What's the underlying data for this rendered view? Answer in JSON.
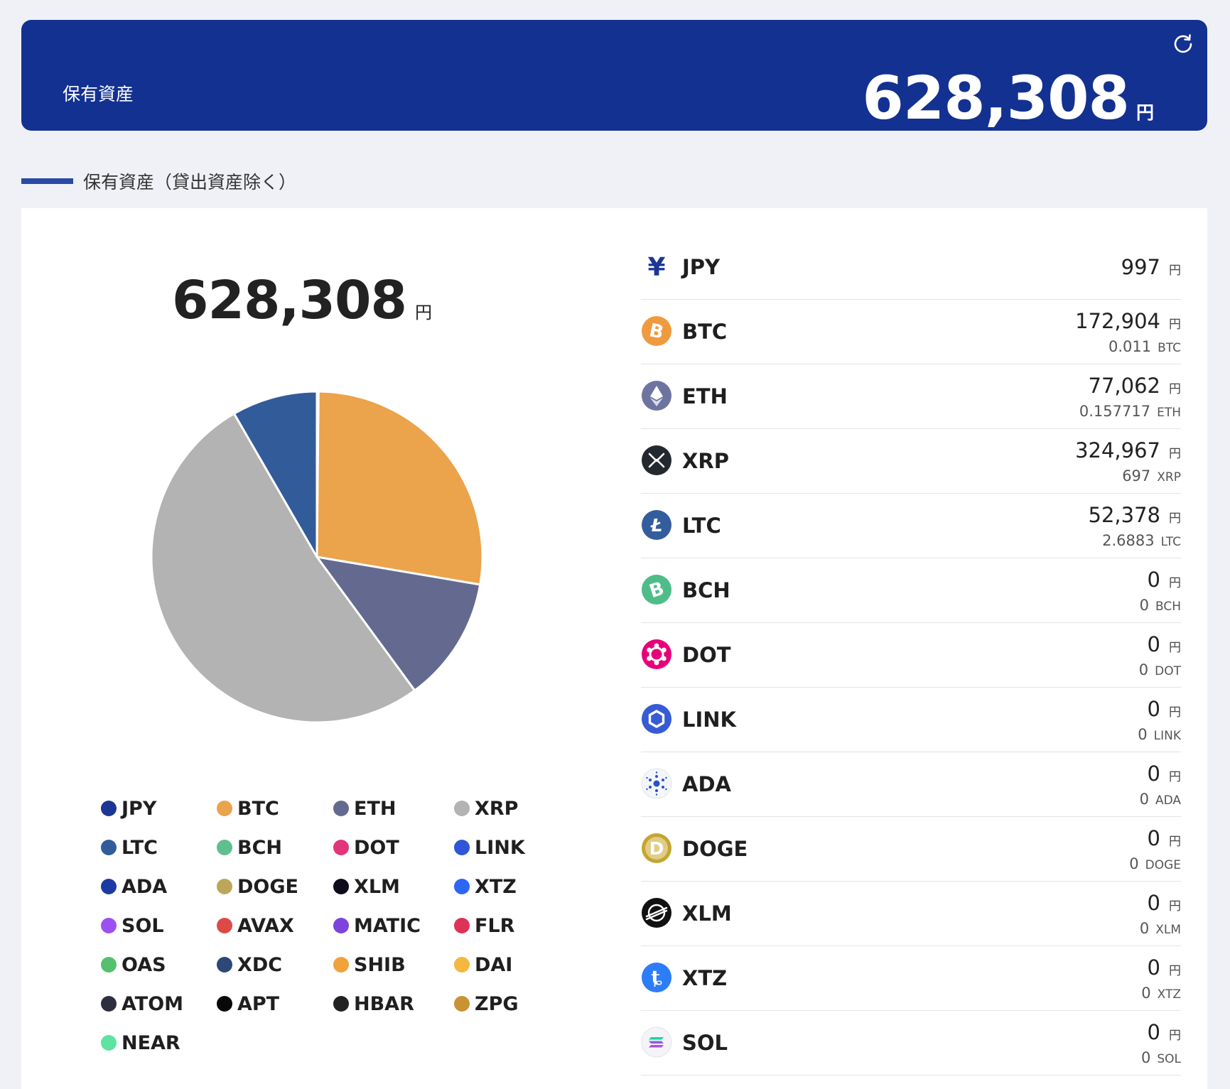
{
  "header": {
    "label": "保有資産",
    "total": "628,308",
    "unit": "円",
    "refresh_icon": "refresh-icon"
  },
  "section": {
    "title": "保有資産（貸出資産除く）"
  },
  "summary": {
    "total": "628,308",
    "unit": "円"
  },
  "chart_data": {
    "type": "pie",
    "title": "",
    "categories": [
      "JPY",
      "BTC",
      "ETH",
      "XRP",
      "LTC"
    ],
    "values": [
      997,
      172904,
      77062,
      324967,
      52378
    ],
    "colors": [
      "#1d3594",
      "#eba34c",
      "#646a8f",
      "#b3b3b3",
      "#325b9a"
    ],
    "start_angle_deg": 0,
    "direction": "clockwise",
    "legend_position": "bottom"
  },
  "legend": [
    {
      "label": "JPY",
      "color": "#1d3594"
    },
    {
      "label": "BTC",
      "color": "#eba34c"
    },
    {
      "label": "ETH",
      "color": "#646a8f"
    },
    {
      "label": "XRP",
      "color": "#b3b3b3"
    },
    {
      "label": "LTC",
      "color": "#325b9a"
    },
    {
      "label": "BCH",
      "color": "#5fbf8e"
    },
    {
      "label": "DOT",
      "color": "#e3357c"
    },
    {
      "label": "LINK",
      "color": "#2f56d6"
    },
    {
      "label": "ADA",
      "color": "#1d3aa3"
    },
    {
      "label": "DOGE",
      "color": "#bca65a"
    },
    {
      "label": "XLM",
      "color": "#0d0b1c"
    },
    {
      "label": "XTZ",
      "color": "#2c66f5"
    },
    {
      "label": "SOL",
      "color": "#9d50f0"
    },
    {
      "label": "AVAX",
      "color": "#dc4a48"
    },
    {
      "label": "MATIC",
      "color": "#7d43de"
    },
    {
      "label": "FLR",
      "color": "#dd3358"
    },
    {
      "label": "OAS",
      "color": "#55c06d"
    },
    {
      "label": "XDC",
      "color": "#2b4876"
    },
    {
      "label": "SHIB",
      "color": "#f0a23b"
    },
    {
      "label": "DAI",
      "color": "#f4b73f"
    },
    {
      "label": "ATOM",
      "color": "#2d2f3e"
    },
    {
      "label": "APT",
      "color": "#080808"
    },
    {
      "label": "HBAR",
      "color": "#222222"
    },
    {
      "label": "ZPG",
      "color": "#c99232"
    },
    {
      "label": "NEAR",
      "color": "#5de3a2"
    }
  ],
  "assets": [
    {
      "symbol": "JPY",
      "yen": "997",
      "yen_unit": "円",
      "amount": "",
      "amount_unit": "",
      "icon": "yen-icon",
      "color": "#1d3594"
    },
    {
      "symbol": "BTC",
      "yen": "172,904",
      "yen_unit": "円",
      "amount": "0.011",
      "amount_unit": "BTC",
      "icon": "bitcoin-icon",
      "color": "#f09a3e"
    },
    {
      "symbol": "ETH",
      "yen": "77,062",
      "yen_unit": "円",
      "amount": "0.157717",
      "amount_unit": "ETH",
      "icon": "ethereum-icon",
      "color": "#6d74a0"
    },
    {
      "symbol": "XRP",
      "yen": "324,967",
      "yen_unit": "円",
      "amount": "697",
      "amount_unit": "XRP",
      "icon": "xrp-icon",
      "color": "#23292f"
    },
    {
      "symbol": "LTC",
      "yen": "52,378",
      "yen_unit": "円",
      "amount": "2.6883",
      "amount_unit": "LTC",
      "icon": "litecoin-icon",
      "color": "#345d9d"
    },
    {
      "symbol": "BCH",
      "yen": "0",
      "yen_unit": "円",
      "amount": "0",
      "amount_unit": "BCH",
      "icon": "bitcoin-cash-icon",
      "color": "#4ebd88"
    },
    {
      "symbol": "DOT",
      "yen": "0",
      "yen_unit": "円",
      "amount": "0",
      "amount_unit": "DOT",
      "icon": "polkadot-icon",
      "color": "#e6007a"
    },
    {
      "symbol": "LINK",
      "yen": "0",
      "yen_unit": "円",
      "amount": "0",
      "amount_unit": "LINK",
      "icon": "chainlink-icon",
      "color": "#375bd2"
    },
    {
      "symbol": "ADA",
      "yen": "0",
      "yen_unit": "円",
      "amount": "0",
      "amount_unit": "ADA",
      "icon": "cardano-icon",
      "color": "#2a4fc7"
    },
    {
      "symbol": "DOGE",
      "yen": "0",
      "yen_unit": "円",
      "amount": "0",
      "amount_unit": "DOGE",
      "icon": "dogecoin-icon",
      "color": "#c2a633"
    },
    {
      "symbol": "XLM",
      "yen": "0",
      "yen_unit": "円",
      "amount": "0",
      "amount_unit": "XLM",
      "icon": "stellar-icon",
      "color": "#111111"
    },
    {
      "symbol": "XTZ",
      "yen": "0",
      "yen_unit": "円",
      "amount": "0",
      "amount_unit": "XTZ",
      "icon": "tezos-icon",
      "color": "#2c7df7"
    },
    {
      "symbol": "SOL",
      "yen": "0",
      "yen_unit": "円",
      "amount": "0",
      "amount_unit": "SOL",
      "icon": "solana-icon",
      "color": "#7b5ce6"
    }
  ]
}
